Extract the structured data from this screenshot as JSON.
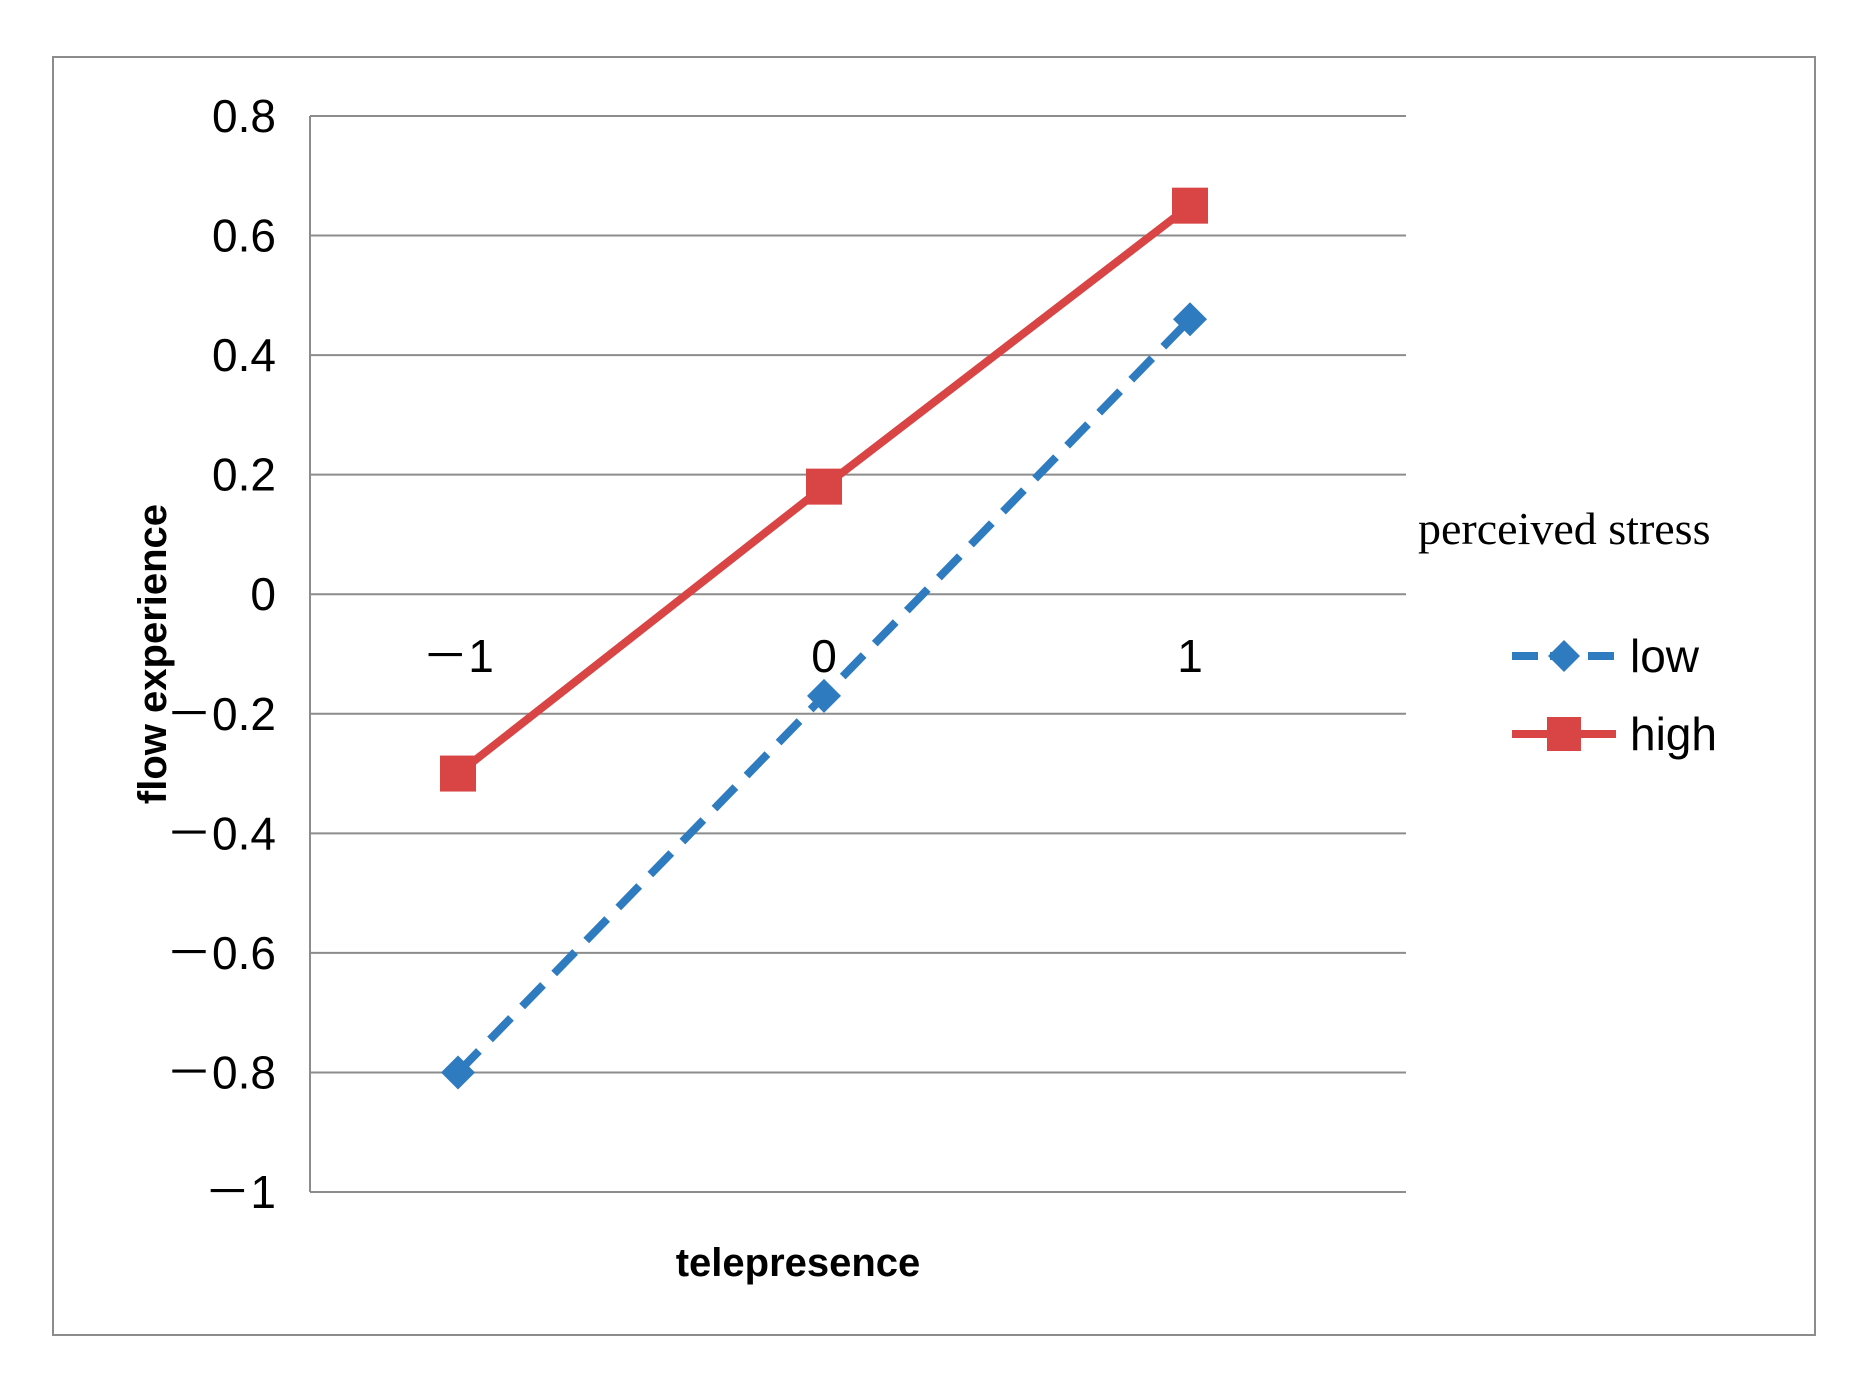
{
  "chart_data": {
    "type": "line",
    "title": "",
    "xlabel": "telepresence",
    "ylabel": "flow experience",
    "categories": [
      "－1",
      "0",
      "1"
    ],
    "x": [
      -1,
      0,
      1
    ],
    "y_ticks": [
      "0.8",
      "0.6",
      "0.4",
      "0.2",
      "0",
      "－0.2",
      "－0.4",
      "－0.6",
      "－0.8",
      "－1"
    ],
    "ylim": [
      -1,
      0.8
    ],
    "grid": true,
    "legend": {
      "title": "perceived stress",
      "placement": "right"
    },
    "series": [
      {
        "name": "low",
        "values": [
          -0.8,
          -0.17,
          0.46
        ],
        "color": "#2e7bbf",
        "line_style": "dashed",
        "marker": "diamond"
      },
      {
        "name": "high",
        "values": [
          -0.3,
          0.18,
          0.65
        ],
        "color": "#d94444",
        "line_style": "solid",
        "marker": "square"
      }
    ]
  }
}
